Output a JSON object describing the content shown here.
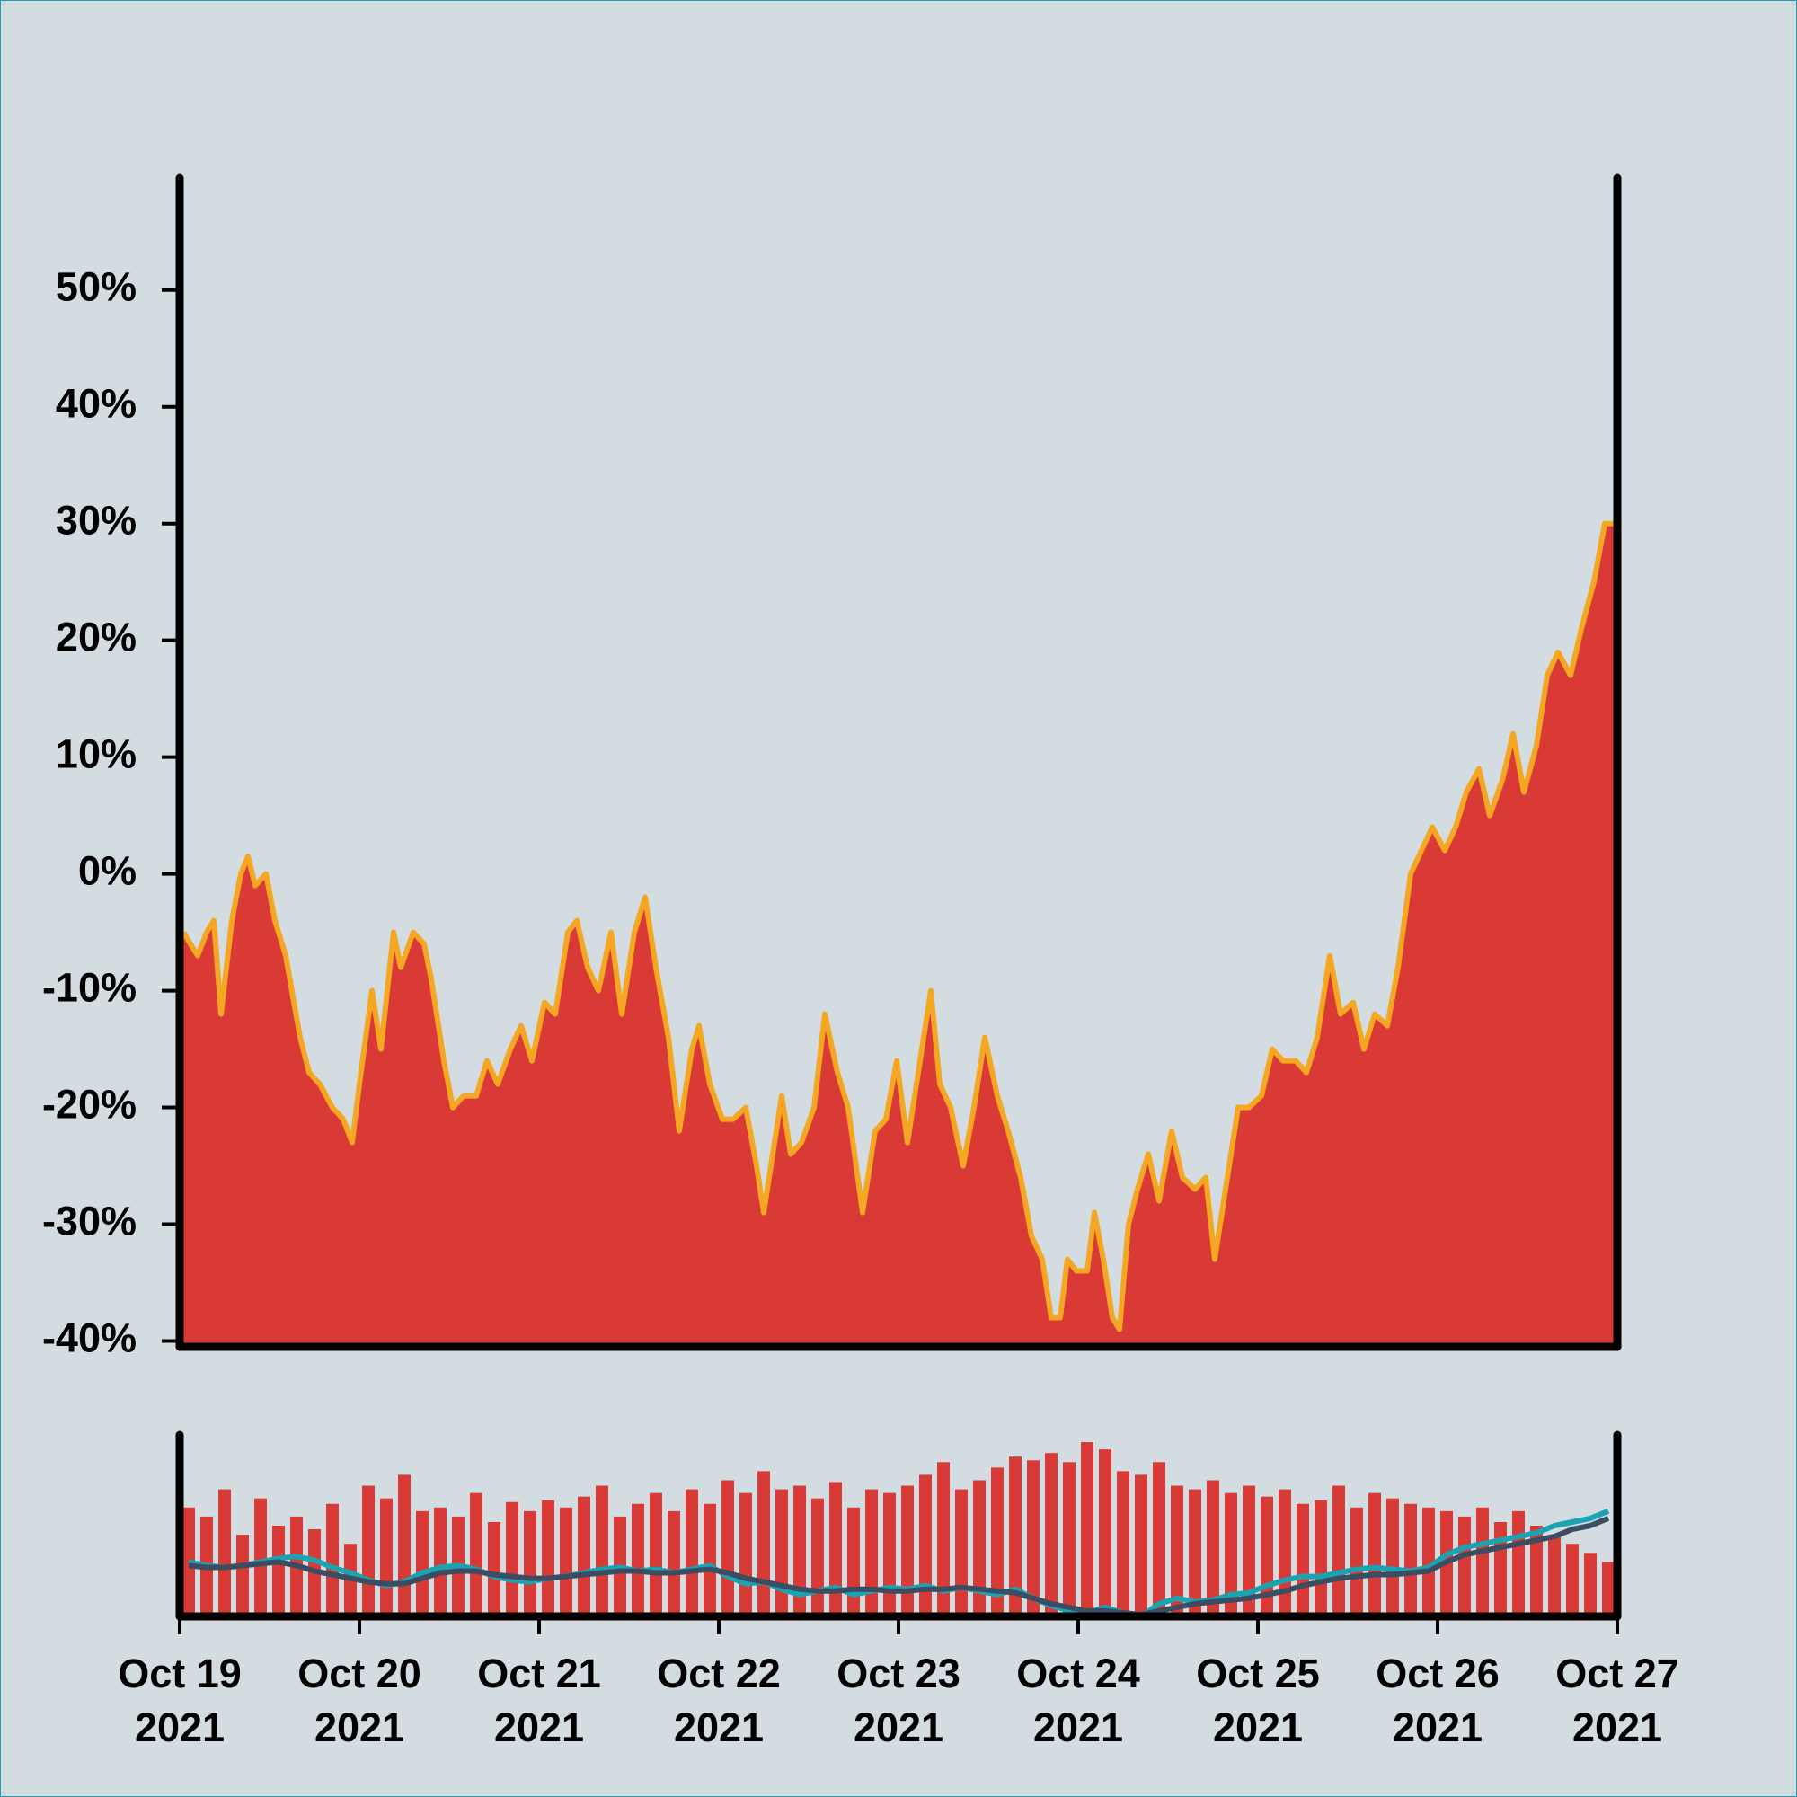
{
  "chart_data": [
    {
      "type": "area",
      "color": "#d93a35",
      "line_color": "#f5a623",
      "x": [
        0.02,
        0.1,
        0.15,
        0.19,
        0.23,
        0.29,
        0.34,
        0.38,
        0.42,
        0.48,
        0.53,
        0.59,
        0.67,
        0.72,
        0.78,
        0.85,
        0.91,
        0.96,
        1.0,
        1.07,
        1.12,
        1.19,
        1.23,
        1.3,
        1.36,
        1.4,
        1.47,
        1.52,
        1.58,
        1.65,
        1.71,
        1.77,
        1.84,
        1.9,
        1.96,
        2.03,
        2.09,
        2.16,
        2.21,
        2.27,
        2.33,
        2.4,
        2.46,
        2.53,
        2.59,
        2.65,
        2.72,
        2.78,
        2.85,
        2.89,
        2.95,
        3.02,
        3.08,
        3.15,
        3.21,
        3.25,
        3.3,
        3.35,
        3.4,
        3.46,
        3.53,
        3.59,
        3.66,
        3.72,
        3.8,
        3.87,
        3.93,
        3.99,
        4.05,
        4.11,
        4.18,
        4.23,
        4.29,
        4.36,
        4.42,
        4.48,
        4.55,
        4.61,
        4.68,
        4.74,
        4.8,
        4.85,
        4.9,
        4.94,
        4.99,
        5.05,
        5.09,
        5.14,
        5.19,
        5.23,
        5.28,
        5.33,
        5.39,
        5.45,
        5.52,
        5.58,
        5.65,
        5.71,
        5.76,
        5.82,
        5.89,
        5.95,
        6.02,
        6.08,
        6.14,
        6.21,
        6.27,
        6.33,
        6.4,
        6.46,
        6.53,
        6.59,
        6.65,
        6.72,
        6.78,
        6.85,
        6.91,
        6.97,
        7.04,
        7.1,
        7.16,
        7.23,
        7.29,
        7.36,
        7.42,
        7.48,
        7.55,
        7.61,
        7.67,
        7.74,
        7.8,
        7.87,
        7.93,
        8.0
      ],
      "y": [
        -5,
        -7,
        -5,
        -4,
        -12,
        -4,
        0,
        1.5,
        -1,
        0,
        -4,
        -7,
        -14,
        -17,
        -18,
        -20,
        -21,
        -23,
        -18,
        -10,
        -15,
        -5,
        -8,
        -5,
        -6,
        -9,
        -16,
        -20,
        -19,
        -19,
        -16,
        -18,
        -15,
        -13,
        -16,
        -11,
        -12,
        -5,
        -4,
        -8,
        -10,
        -5,
        -12,
        -5,
        -2,
        -8,
        -14,
        -22,
        -15,
        -13,
        -18,
        -21,
        -21,
        -20,
        -25,
        -29,
        -24,
        -19,
        -24,
        -23,
        -20,
        -12,
        -17,
        -20,
        -29,
        -22,
        -21,
        -16,
        -23,
        -17,
        -10,
        -18,
        -20,
        -25,
        -20,
        -14,
        -19,
        -22,
        -26,
        -31,
        -33,
        -38,
        -38,
        -33,
        -34,
        -34,
        -29,
        -33,
        -38,
        -39,
        -30,
        -27,
        -24,
        -28,
        -22,
        -26,
        -27,
        -26,
        -33,
        -27,
        -20,
        -20,
        -19,
        -15,
        -16,
        -16,
        -17,
        -14,
        -7,
        -12,
        -11,
        -15,
        -12,
        -13,
        -8,
        0,
        2,
        4,
        2,
        4,
        7,
        9,
        5,
        8,
        12,
        7,
        11,
        17,
        19,
        17,
        21,
        25,
        30,
        30
      ],
      "xlim": [
        0,
        8
      ],
      "ylim": [
        -40.5,
        59.6
      ],
      "yticks": [
        {
          "value": -40,
          "label": "-40%"
        },
        {
          "value": -30,
          "label": "-30%"
        },
        {
          "value": -20,
          "label": "-20%"
        },
        {
          "value": -10,
          "label": "-10%"
        },
        {
          "value": 0,
          "label": "0%"
        },
        {
          "value": 10,
          "label": "10%"
        },
        {
          "value": 20,
          "label": "20%"
        },
        {
          "value": 30,
          "label": "30%"
        },
        {
          "value": 40,
          "label": "40%"
        },
        {
          "value": 50,
          "label": "50%"
        }
      ]
    },
    {
      "type": "bar",
      "x": [
        0.05,
        0.15,
        0.25,
        0.35,
        0.45,
        0.55,
        0.65,
        0.75,
        0.85,
        0.95,
        1.05,
        1.15,
        1.25,
        1.35,
        1.45,
        1.55,
        1.65,
        1.75,
        1.85,
        1.95,
        2.05,
        2.15,
        2.25,
        2.35,
        2.45,
        2.55,
        2.65,
        2.75,
        2.85,
        2.95,
        3.05,
        3.15,
        3.25,
        3.35,
        3.45,
        3.55,
        3.65,
        3.75,
        3.85,
        3.95,
        4.05,
        4.15,
        4.25,
        4.35,
        4.45,
        4.55,
        4.65,
        4.75,
        4.85,
        4.95,
        5.05,
        5.15,
        5.25,
        5.35,
        5.45,
        5.55,
        5.65,
        5.75,
        5.85,
        5.95,
        6.05,
        6.15,
        6.25,
        6.35,
        6.45,
        6.55,
        6.65,
        6.75,
        6.85,
        6.95,
        7.05,
        7.15,
        7.25,
        7.35,
        7.45,
        7.55,
        7.65,
        7.75,
        7.85,
        7.95
      ],
      "series": [
        {
          "type": "bar",
          "color": "#d93a35",
          "values": [
            60,
            55,
            70,
            45,
            65,
            50,
            55,
            48,
            62,
            40,
            72,
            65,
            78,
            58,
            60,
            55,
            68,
            52,
            63,
            58,
            64,
            60,
            66,
            72,
            55,
            62,
            68,
            58,
            70,
            62,
            75,
            68,
            80,
            70,
            72,
            65,
            74,
            60,
            70,
            68,
            72,
            78,
            85,
            70,
            75,
            82,
            88,
            86,
            90,
            85,
            96,
            92,
            80,
            78,
            85,
            72,
            70,
            75,
            68,
            72,
            66,
            70,
            62,
            64,
            72,
            60,
            68,
            65,
            62,
            60,
            58,
            55,
            60,
            52,
            58,
            50,
            45,
            40,
            35,
            30
          ]
        },
        {
          "type": "line",
          "color": "#1aa3b0",
          "values": [
            30,
            28,
            27,
            28,
            30,
            32,
            33,
            31,
            27,
            24,
            20,
            17,
            19,
            24,
            27,
            28,
            26,
            22,
            20,
            19,
            21,
            22,
            24,
            26,
            27,
            25,
            26,
            24,
            26,
            28,
            22,
            18,
            19,
            15,
            12,
            14,
            16,
            12,
            14,
            16,
            15,
            17,
            14,
            16,
            14,
            12,
            15,
            10,
            6,
            3,
            2,
            5,
            2,
            0,
            7,
            10,
            8,
            9,
            12,
            13,
            17,
            20,
            22,
            22,
            24,
            26,
            27,
            26,
            25,
            27,
            34,
            38,
            40,
            42,
            44,
            46,
            50,
            52,
            54,
            58
          ]
        },
        {
          "type": "line",
          "color": "#3a4d63",
          "values": [
            28,
            27,
            27,
            28,
            29,
            30,
            28,
            25,
            23,
            21,
            19,
            18,
            18,
            21,
            24,
            25,
            25,
            23,
            22,
            21,
            21,
            22,
            23,
            24,
            25,
            25,
            24,
            24,
            25,
            26,
            24,
            21,
            19,
            17,
            15,
            14,
            14,
            15,
            15,
            14,
            14,
            15,
            15,
            16,
            15,
            14,
            13,
            10,
            7,
            5,
            3,
            3,
            2,
            1,
            3,
            5,
            7,
            8,
            9,
            10,
            12,
            14,
            17,
            19,
            21,
            22,
            23,
            23,
            24,
            25,
            30,
            34,
            36,
            38,
            40,
            42,
            44,
            48,
            50,
            54
          ]
        }
      ],
      "xlim": [
        0,
        8
      ],
      "ylim": [
        0,
        100
      ],
      "xticks": [
        {
          "value": 0,
          "label": [
            "Oct 19",
            "2021"
          ]
        },
        {
          "value": 1,
          "label": [
            "Oct 20",
            "2021"
          ]
        },
        {
          "value": 2,
          "label": [
            "Oct 21",
            "2021"
          ]
        },
        {
          "value": 3,
          "label": [
            "Oct 22",
            "2021"
          ]
        },
        {
          "value": 4,
          "label": [
            "Oct 23",
            "2021"
          ]
        },
        {
          "value": 5,
          "label": [
            "Oct 24",
            "2021"
          ]
        },
        {
          "value": 6,
          "label": [
            "Oct 25",
            "2021"
          ]
        },
        {
          "value": 7,
          "label": [
            "Oct 26",
            "2021"
          ]
        },
        {
          "value": 8,
          "label": [
            "Oct 27",
            "2021"
          ]
        }
      ]
    }
  ]
}
